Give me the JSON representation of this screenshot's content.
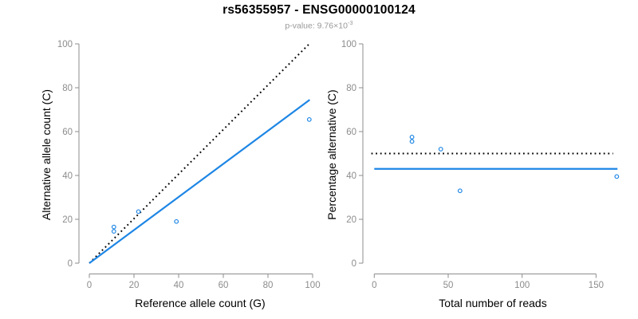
{
  "header": {
    "title": "rs56355957 - ENSG00000100124",
    "pvalue_label": "p-value: 9.76×10",
    "pvalue_exponent": "-3"
  },
  "colors": {
    "accent_blue": "#1E86E5",
    "line_black": "#000000",
    "axis_gray": "#8C8C8C",
    "subtitle_gray": "#999999"
  },
  "chart_data": [
    {
      "id": "allele-count-plot",
      "type": "scatter",
      "title": "",
      "xlabel": "Reference allele count (G)",
      "ylabel": "Alternative allele count (C)",
      "xlim": [
        0,
        100
      ],
      "ylim": [
        0,
        100
      ],
      "xticks": [
        0,
        20,
        40,
        60,
        80,
        100
      ],
      "yticks": [
        0,
        20,
        40,
        60,
        80,
        100
      ],
      "grid": false,
      "legend": "none",
      "point_color": "#1E86E5",
      "points": [
        [
          11,
          14.5
        ],
        [
          11,
          16.5
        ],
        [
          22,
          23.5
        ],
        [
          39,
          19
        ],
        [
          98.5,
          65.5
        ]
      ],
      "lines": [
        {
          "name": "expected-ratio-line",
          "style": "dotted",
          "color": "#000000",
          "from": [
            0,
            0
          ],
          "to": [
            98.5,
            100
          ]
        },
        {
          "name": "fitted-ratio-line",
          "style": "solid",
          "color": "#1E86E5",
          "from": [
            0,
            0
          ],
          "to": [
            98.7,
            74.5
          ]
        }
      ]
    },
    {
      "id": "percentage-plot",
      "type": "scatter",
      "title": "",
      "xlabel": "Total number of reads",
      "ylabel": "Percentage alternative (C)",
      "xlim": [
        0,
        165
      ],
      "ylim": [
        0,
        100
      ],
      "xticks": [
        0,
        50,
        100,
        150
      ],
      "yticks": [
        0,
        20,
        40,
        60,
        80,
        100
      ],
      "grid": false,
      "legend": "none",
      "point_color": "#1E86E5",
      "points": [
        [
          25.5,
          57.5
        ],
        [
          25.5,
          55.5
        ],
        [
          45,
          52
        ],
        [
          58,
          33
        ],
        [
          164,
          39.5
        ]
      ],
      "lines": [
        {
          "name": "expected-percentage-line",
          "style": "dotted",
          "color": "#000000",
          "from": [
            -2,
            50
          ],
          "to": [
            161.5,
            50
          ]
        },
        {
          "name": "fitted-percentage-line",
          "style": "solid",
          "color": "#1E86E5",
          "from": [
            0,
            43
          ],
          "to": [
            164.5,
            43
          ]
        }
      ]
    }
  ]
}
